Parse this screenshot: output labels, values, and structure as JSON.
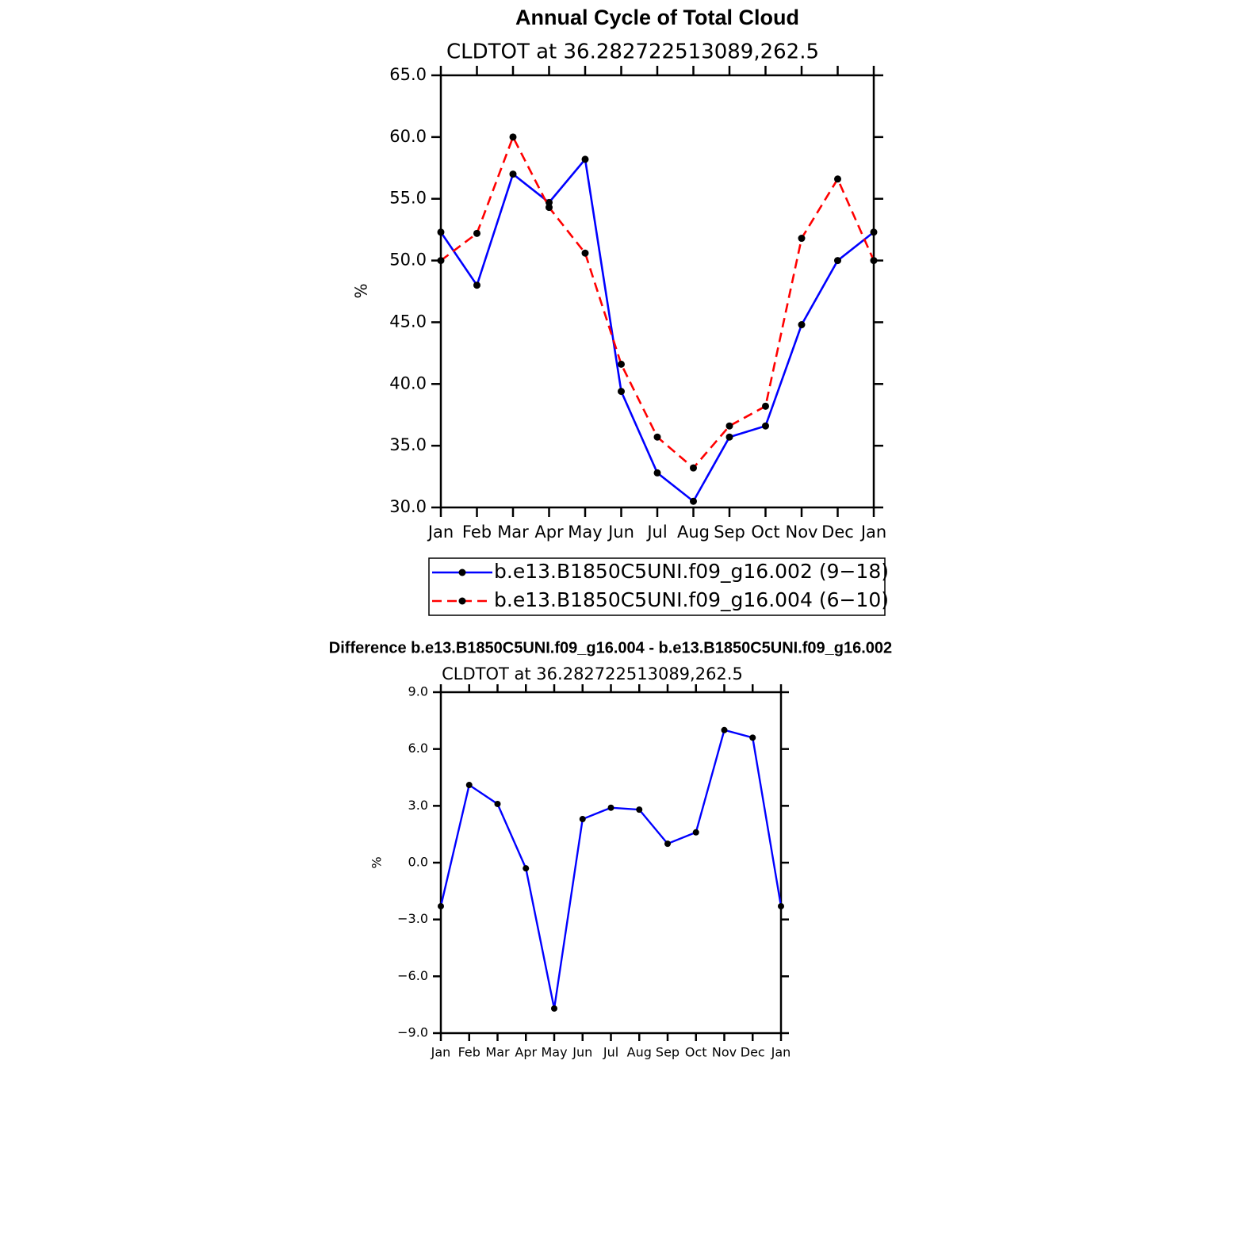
{
  "chart_data": [
    {
      "type": "line",
      "title": "Annual Cycle of Total Cloud",
      "subtitle": "CLDTOT at 36.282722513089,262.5",
      "y_label": "%",
      "categories": [
        "Jan",
        "Feb",
        "Mar",
        "Apr",
        "May",
        "Jun",
        "Jul",
        "Aug",
        "Sep",
        "Oct",
        "Nov",
        "Dec",
        "Jan"
      ],
      "series": [
        {
          "name": "b.e13.B1850C5UNI.f09_g16.002 (9−18)",
          "color": "#0000ff",
          "line_style": "solid",
          "values": [
            52.3,
            48.0,
            57.0,
            54.7,
            58.2,
            39.4,
            32.8,
            30.5,
            35.7,
            36.6,
            44.8,
            50.0,
            52.3
          ]
        },
        {
          "name": "b.e13.B1850C5UNI.f09_g16.004 (6−10)",
          "color": "#ff0000",
          "line_style": "dashed",
          "values": [
            50.0,
            52.2,
            60.0,
            54.3,
            50.6,
            41.6,
            35.7,
            33.2,
            36.6,
            38.2,
            51.8,
            56.6,
            50.0
          ]
        }
      ],
      "ylim": [
        30,
        65
      ],
      "yticks": [
        {
          "value": 30,
          "label": "30.0"
        },
        {
          "value": 35,
          "label": "35.0"
        },
        {
          "value": 40,
          "label": "40.0"
        },
        {
          "value": 45,
          "label": "45.0"
        },
        {
          "value": 50,
          "label": "50.0"
        },
        {
          "value": 55,
          "label": "55.0"
        },
        {
          "value": 60,
          "label": "60.0"
        },
        {
          "value": 65,
          "label": "65.0"
        }
      ],
      "legend": "bottom"
    },
    {
      "type": "line",
      "title": "Difference b.e13.B1850C5UNI.f09_g16.004 - b.e13.B1850C5UNI.f09_g16.002",
      "subtitle": "CLDTOT at 36.282722513089,262.5",
      "y_label": "%",
      "categories": [
        "Jan",
        "Feb",
        "Mar",
        "Apr",
        "May",
        "Jun",
        "Jul",
        "Aug",
        "Sep",
        "Oct",
        "Nov",
        "Dec",
        "Jan"
      ],
      "series": [
        {
          "color": "#0000ff",
          "line_style": "solid",
          "values": [
            -2.3,
            4.1,
            3.1,
            -0.3,
            -7.7,
            2.3,
            2.9,
            2.8,
            1.0,
            1.6,
            7.0,
            6.6,
            -2.3
          ]
        }
      ],
      "ylim": [
        -9,
        9
      ],
      "yticks": [
        {
          "value": -9,
          "label": "−9.0"
        },
        {
          "value": -6,
          "label": "−6.0"
        },
        {
          "value": -3,
          "label": "−3.0"
        },
        {
          "value": 0,
          "label": "0.0"
        },
        {
          "value": 3,
          "label": "3.0"
        },
        {
          "value": 6,
          "label": "6.0"
        },
        {
          "value": 9,
          "label": "9.0"
        }
      ]
    }
  ]
}
